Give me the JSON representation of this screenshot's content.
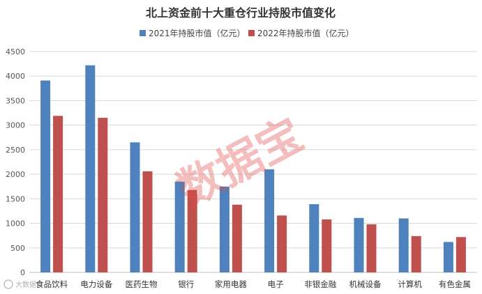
{
  "chart_data": {
    "type": "bar",
    "title": "北上资金前十大重仓行业持股市值变化",
    "categories": [
      "食品饮料",
      "电力设备",
      "医药生物",
      "银行",
      "家用电器",
      "电子",
      "非银金融",
      "机械设备",
      "计算机",
      "有色金属"
    ],
    "series": [
      {
        "name": "2021年持股市值（亿元）",
        "color": "#4f81bd",
        "values": [
          3910,
          4220,
          2650,
          1850,
          1750,
          2100,
          1390,
          1110,
          1100,
          620
        ]
      },
      {
        "name": "2022年持股市值（亿元）",
        "color": "#c0504d",
        "values": [
          3190,
          3150,
          2060,
          1680,
          1380,
          1160,
          1080,
          980,
          740,
          720
        ]
      }
    ],
    "ylim": [
      0,
      4500
    ],
    "yticks": [
      0,
      500,
      1000,
      1500,
      2000,
      2500,
      3000,
      3500,
      4000,
      4500
    ],
    "grid": true,
    "legend_position": "top-center"
  },
  "watermark": "数据宝",
  "logo_text": "大数据"
}
